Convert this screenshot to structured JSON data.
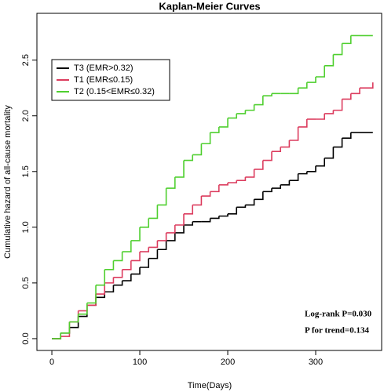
{
  "chart_data": {
    "type": "line",
    "step": true,
    "title": "Kaplan-Meier Curves",
    "xlabel": "Time(Days)",
    "ylabel": "Cumulative hazard of all-cause mortality",
    "x": [
      0,
      10,
      20,
      30,
      40,
      50,
      60,
      70,
      80,
      90,
      100,
      110,
      120,
      130,
      140,
      150,
      160,
      170,
      180,
      190,
      200,
      210,
      220,
      230,
      240,
      250,
      260,
      270,
      280,
      290,
      300,
      310,
      320,
      330,
      340,
      350,
      365
    ],
    "series": [
      {
        "name": "T3 (EMR>0.32)",
        "color": "#000000",
        "values": [
          0,
          0.05,
          0.1,
          0.2,
          0.3,
          0.37,
          0.42,
          0.48,
          0.52,
          0.58,
          0.64,
          0.72,
          0.8,
          0.88,
          0.95,
          1.02,
          1.05,
          1.05,
          1.08,
          1.1,
          1.12,
          1.18,
          1.2,
          1.25,
          1.32,
          1.35,
          1.38,
          1.42,
          1.48,
          1.5,
          1.55,
          1.62,
          1.72,
          1.8,
          1.85,
          1.85,
          1.85
        ]
      },
      {
        "name": "T1 (EMR≤0.15)",
        "color": "#dc3c5e",
        "values": [
          0,
          0.02,
          0.15,
          0.25,
          0.3,
          0.4,
          0.5,
          0.55,
          0.62,
          0.7,
          0.78,
          0.82,
          0.88,
          0.95,
          1.02,
          1.12,
          1.2,
          1.28,
          1.32,
          1.38,
          1.4,
          1.42,
          1.45,
          1.52,
          1.6,
          1.68,
          1.72,
          1.78,
          1.9,
          1.97,
          1.97,
          2.02,
          2.05,
          2.15,
          2.2,
          2.25,
          2.3
        ]
      },
      {
        "name": "T2 (0.15<EMR≤0.32)",
        "color": "#4fcf2f",
        "values": [
          0,
          0.05,
          0.15,
          0.22,
          0.32,
          0.48,
          0.62,
          0.7,
          0.78,
          0.88,
          1.0,
          1.08,
          1.2,
          1.35,
          1.45,
          1.6,
          1.65,
          1.75,
          1.85,
          1.9,
          1.98,
          2.02,
          2.05,
          2.1,
          2.18,
          2.2,
          2.2,
          2.2,
          2.25,
          2.3,
          2.35,
          2.45,
          2.55,
          2.65,
          2.72,
          2.72,
          2.72
        ]
      }
    ],
    "xlim": [
      -17,
      375
    ],
    "ylim": [
      -0.106,
      2.92
    ],
    "xticks": [
      0,
      100,
      200,
      300
    ],
    "yticks": [
      {
        "value": 0,
        "label": "0.0"
      },
      {
        "value": 0.5,
        "label": "0.5"
      },
      {
        "value": 1,
        "label": "1.0"
      },
      {
        "value": 1.5,
        "label": "1.5"
      },
      {
        "value": 2,
        "label": "2.0"
      },
      {
        "value": 2.5,
        "label": "2.5"
      }
    ],
    "annotations": [
      "Log-rank P=0.030",
      "P for trend=0.134"
    ],
    "legend": "upper left"
  }
}
